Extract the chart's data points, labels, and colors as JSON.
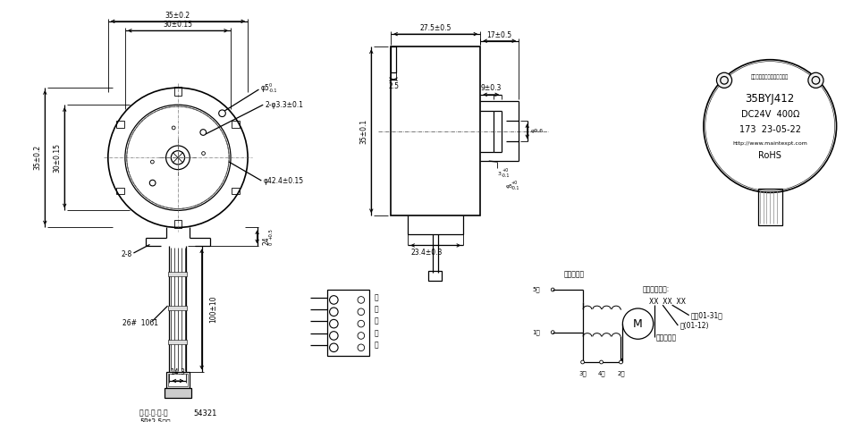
{
  "bg_color": "#ffffff",
  "line_color": "#000000",
  "label_model": "35BYJ412",
  "label_voltage": "DC24V  400Ω",
  "label_num": "173  23-05-22",
  "label_url": "http://www.maintexpt.com",
  "label_rohs": "RoHS",
  "label_company": "深圳市正德智控股份有限公司"
}
